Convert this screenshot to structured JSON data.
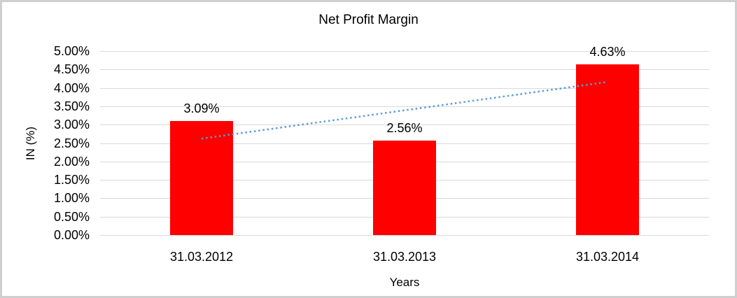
{
  "chart_data": {
    "type": "bar",
    "title": "Net Profit Margin",
    "xlabel": "Years",
    "ylabel": "IN (%)",
    "categories": [
      "31.03.2012",
      "31.03.2013",
      "31.03.2014"
    ],
    "values": [
      3.09,
      2.56,
      4.63
    ],
    "data_labels": [
      "3.09%",
      "2.56%",
      "4.63%"
    ],
    "ylim": [
      0,
      5
    ],
    "ytick_step": 0.5,
    "ytick_labels": [
      "0.00%",
      "0.50%",
      "1.00%",
      "1.50%",
      "2.00%",
      "2.50%",
      "3.00%",
      "3.50%",
      "4.00%",
      "4.50%",
      "5.00%"
    ],
    "grid": true,
    "legend": "none",
    "bar_color": "#ff0000",
    "trendline": {
      "type": "linear",
      "style": "dotted",
      "color": "#5b9bd5",
      "from_value": 2.62,
      "to_value": 4.16
    }
  },
  "colors": {
    "background": "#ffffff",
    "border": "#cfcfcf",
    "gridline": "#d9d9d9",
    "text": "#000000"
  }
}
